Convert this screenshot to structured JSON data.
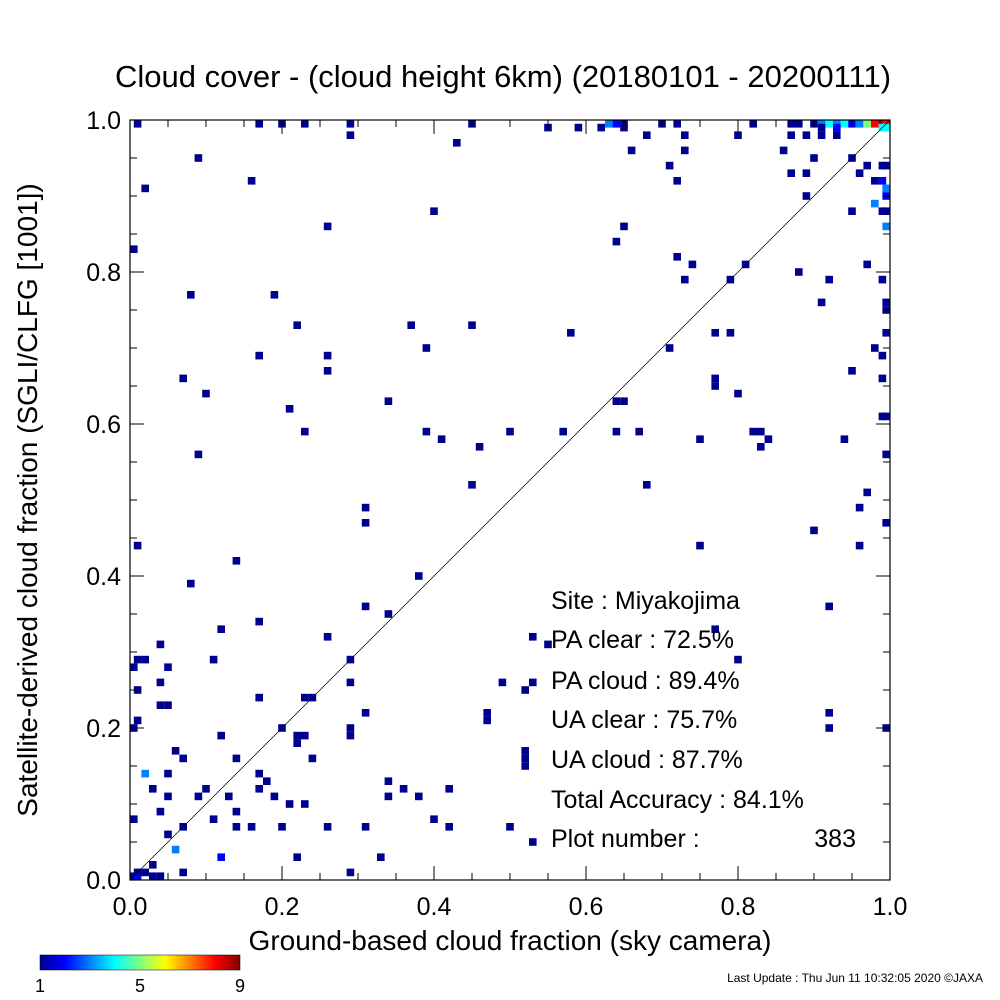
{
  "chart_data": {
    "type": "heatmap",
    "title": "Cloud cover - (cloud height 6km)  (20180101 - 20200111)",
    "xlabel": "Ground-based cloud fraction (sky camera)",
    "ylabel": "Satellite-derived cloud fraction (SGLI/CLFG [1001])",
    "xlim": [
      0.0,
      1.0
    ],
    "ylim": [
      0.0,
      1.0
    ],
    "xticks": [
      "0.0",
      "0.2",
      "0.4",
      "0.6",
      "0.8",
      "1.0"
    ],
    "yticks": [
      "0.0",
      "0.2",
      "0.4",
      "0.6",
      "0.8",
      "1.0"
    ],
    "grid": false,
    "diagonal_line": true,
    "cell_size": 0.01,
    "colorbar": {
      "min": 1,
      "max": 9,
      "ticks": [
        "1",
        "5",
        "9"
      ],
      "colors": [
        "#00008f",
        "#0000ff",
        "#0080ff",
        "#00ffff",
        "#80ff80",
        "#ffff00",
        "#ff8000",
        "#ff0000",
        "#800000"
      ]
    },
    "stats": {
      "site": "Site : Miyakojima",
      "pa_clear": "PA clear :  72.5%",
      "pa_cloud": "PA cloud :  89.4%",
      "ua_clear": "UA clear :  75.7%",
      "ua_cloud": "UA cloud :  87.7%",
      "total_accuracy": "Total Accuracy :  84.1%",
      "plot_number_label": "Plot number :",
      "plot_number_value": "383"
    },
    "points": [
      [
        0.0,
        0.0,
        1
      ],
      [
        0.01,
        0.0,
        2
      ],
      [
        0.03,
        0.0,
        1
      ],
      [
        0.04,
        0.0,
        1
      ],
      [
        0.01,
        0.01,
        1
      ],
      [
        0.02,
        0.01,
        1
      ],
      [
        0.07,
        0.01,
        1
      ],
      [
        0.29,
        0.01,
        1
      ],
      [
        0.03,
        0.02,
        1
      ],
      [
        0.06,
        0.04,
        3
      ],
      [
        0.12,
        0.03,
        2
      ],
      [
        0.22,
        0.03,
        1
      ],
      [
        0.33,
        0.03,
        1
      ],
      [
        0.05,
        0.06,
        1
      ],
      [
        0.07,
        0.07,
        1
      ],
      [
        0.11,
        0.08,
        1
      ],
      [
        0.14,
        0.07,
        1
      ],
      [
        0.16,
        0.07,
        1
      ],
      [
        0.2,
        0.07,
        1
      ],
      [
        0.26,
        0.07,
        1
      ],
      [
        0.31,
        0.07,
        1
      ],
      [
        0.4,
        0.08,
        1
      ],
      [
        0.42,
        0.07,
        1
      ],
      [
        0.5,
        0.07,
        1
      ],
      [
        0.53,
        0.05,
        1
      ],
      [
        0.0,
        0.08,
        1
      ],
      [
        0.04,
        0.09,
        1
      ],
      [
        0.09,
        0.11,
        1
      ],
      [
        0.14,
        0.09,
        1
      ],
      [
        0.05,
        0.11,
        1
      ],
      [
        0.17,
        0.12,
        1
      ],
      [
        0.19,
        0.11,
        1
      ],
      [
        0.21,
        0.1,
        1
      ],
      [
        0.23,
        0.1,
        1
      ],
      [
        0.34,
        0.11,
        1
      ],
      [
        0.36,
        0.12,
        1
      ],
      [
        0.38,
        0.11,
        1
      ],
      [
        0.42,
        0.12,
        1
      ],
      [
        0.02,
        0.14,
        3
      ],
      [
        0.1,
        0.12,
        1
      ],
      [
        0.13,
        0.11,
        1
      ],
      [
        0.18,
        0.13,
        1
      ],
      [
        0.34,
        0.13,
        1
      ],
      [
        0.03,
        0.12,
        1
      ],
      [
        0.17,
        0.14,
        1
      ],
      [
        0.06,
        0.17,
        1
      ],
      [
        0.07,
        0.16,
        1
      ],
      [
        0.14,
        0.16,
        1
      ],
      [
        0.24,
        0.16,
        1
      ],
      [
        0.52,
        0.15,
        1
      ],
      [
        0.52,
        0.16,
        1
      ],
      [
        0.52,
        0.17,
        1
      ],
      [
        0.05,
        0.14,
        1
      ],
      [
        0.12,
        0.19,
        1
      ],
      [
        0.22,
        0.19,
        1
      ],
      [
        0.23,
        0.19,
        1
      ],
      [
        0.22,
        0.18,
        1
      ],
      [
        0.29,
        0.19,
        1
      ],
      [
        0.29,
        0.2,
        1
      ],
      [
        0.0,
        0.2,
        1
      ],
      [
        0.01,
        0.21,
        1
      ],
      [
        0.2,
        0.2,
        1
      ],
      [
        0.31,
        0.22,
        1
      ],
      [
        0.47,
        0.22,
        1
      ],
      [
        0.47,
        0.21,
        1
      ],
      [
        0.92,
        0.22,
        1
      ],
      [
        0.92,
        0.2,
        1
      ],
      [
        1.0,
        0.2,
        1
      ],
      [
        0.04,
        0.23,
        1
      ],
      [
        0.05,
        0.23,
        1
      ],
      [
        0.17,
        0.24,
        1
      ],
      [
        0.23,
        0.24,
        1
      ],
      [
        0.24,
        0.24,
        1
      ],
      [
        0.29,
        0.26,
        1
      ],
      [
        0.01,
        0.25,
        1
      ],
      [
        0.04,
        0.26,
        1
      ],
      [
        0.49,
        0.26,
        1
      ],
      [
        0.52,
        0.25,
        1
      ],
      [
        0.53,
        0.26,
        1
      ],
      [
        0.0,
        0.28,
        1
      ],
      [
        0.01,
        0.29,
        1
      ],
      [
        0.02,
        0.29,
        1
      ],
      [
        0.05,
        0.28,
        1
      ],
      [
        0.11,
        0.29,
        1
      ],
      [
        0.29,
        0.29,
        1
      ],
      [
        0.8,
        0.29,
        1
      ],
      [
        0.04,
        0.31,
        1
      ],
      [
        0.12,
        0.33,
        1
      ],
      [
        0.17,
        0.34,
        1
      ],
      [
        0.26,
        0.32,
        1
      ],
      [
        0.53,
        0.32,
        1
      ],
      [
        0.55,
        0.31,
        1
      ],
      [
        0.77,
        0.33,
        1
      ],
      [
        0.92,
        0.36,
        1
      ],
      [
        0.34,
        0.35,
        1
      ],
      [
        0.31,
        0.36,
        1
      ],
      [
        0.08,
        0.39,
        1
      ],
      [
        0.38,
        0.4,
        1
      ],
      [
        0.14,
        0.42,
        1
      ],
      [
        0.01,
        0.44,
        1
      ],
      [
        0.75,
        0.44,
        1
      ],
      [
        0.96,
        0.44,
        1
      ],
      [
        0.9,
        0.46,
        1
      ],
      [
        0.31,
        0.47,
        1
      ],
      [
        0.31,
        0.49,
        1
      ],
      [
        0.96,
        0.49,
        1
      ],
      [
        0.97,
        0.51,
        1
      ],
      [
        0.45,
        0.52,
        1
      ],
      [
        0.68,
        0.52,
        1
      ],
      [
        1.0,
        0.47,
        1
      ],
      [
        0.09,
        0.56,
        1
      ],
      [
        0.46,
        0.57,
        1
      ],
      [
        0.41,
        0.58,
        1
      ],
      [
        0.39,
        0.59,
        1
      ],
      [
        0.23,
        0.59,
        1
      ],
      [
        0.5,
        0.59,
        1
      ],
      [
        0.57,
        0.59,
        1
      ],
      [
        0.64,
        0.59,
        1
      ],
      [
        0.67,
        0.59,
        1
      ],
      [
        0.75,
        0.58,
        1
      ],
      [
        0.82,
        0.59,
        1
      ],
      [
        0.83,
        0.59,
        1
      ],
      [
        0.84,
        0.58,
        1
      ],
      [
        0.83,
        0.57,
        1
      ],
      [
        0.94,
        0.58,
        1
      ],
      [
        1.0,
        0.56,
        1
      ],
      [
        0.21,
        0.62,
        1
      ],
      [
        0.34,
        0.63,
        1
      ],
      [
        0.64,
        0.63,
        1
      ],
      [
        0.65,
        0.63,
        1
      ],
      [
        0.8,
        0.64,
        1
      ],
      [
        0.1,
        0.64,
        1
      ],
      [
        0.07,
        0.66,
        1
      ],
      [
        0.77,
        0.65,
        1
      ],
      [
        0.77,
        0.66,
        1
      ],
      [
        0.99,
        0.61,
        1
      ],
      [
        1.0,
        0.61,
        1
      ],
      [
        0.17,
        0.69,
        1
      ],
      [
        0.26,
        0.69,
        1
      ],
      [
        0.26,
        0.67,
        1
      ],
      [
        0.39,
        0.7,
        1
      ],
      [
        0.71,
        0.7,
        1
      ],
      [
        0.95,
        0.67,
        1
      ],
      [
        0.99,
        0.66,
        1
      ],
      [
        0.22,
        0.73,
        1
      ],
      [
        0.37,
        0.73,
        1
      ],
      [
        0.45,
        0.73,
        1
      ],
      [
        0.58,
        0.72,
        1
      ],
      [
        0.77,
        0.72,
        1
      ],
      [
        0.79,
        0.72,
        1
      ],
      [
        0.98,
        0.7,
        1
      ],
      [
        0.99,
        0.69,
        1
      ],
      [
        1.0,
        0.72,
        1
      ],
      [
        0.08,
        0.77,
        1
      ],
      [
        0.19,
        0.77,
        1
      ],
      [
        0.91,
        0.76,
        1
      ],
      [
        0.79,
        0.79,
        1
      ],
      [
        0.88,
        0.8,
        1
      ],
      [
        0.92,
        0.79,
        1
      ],
      [
        0.73,
        0.79,
        1
      ],
      [
        0.72,
        0.82,
        1
      ],
      [
        0.74,
        0.81,
        1
      ],
      [
        0.81,
        0.81,
        1
      ],
      [
        0.97,
        0.81,
        1
      ],
      [
        0.99,
        0.79,
        1
      ],
      [
        1.0,
        0.76,
        1
      ],
      [
        1.0,
        0.75,
        1
      ],
      [
        0.0,
        0.83,
        1
      ],
      [
        0.64,
        0.84,
        1
      ],
      [
        0.26,
        0.86,
        1
      ],
      [
        0.65,
        0.86,
        1
      ],
      [
        1.0,
        0.86,
        3
      ],
      [
        0.4,
        0.88,
        1
      ],
      [
        0.95,
        0.88,
        1
      ],
      [
        0.02,
        0.91,
        1
      ],
      [
        0.16,
        0.92,
        1
      ],
      [
        0.89,
        0.9,
        1
      ],
      [
        0.87,
        0.93,
        1
      ],
      [
        0.89,
        0.93,
        1
      ],
      [
        0.96,
        0.93,
        1
      ],
      [
        0.98,
        0.92,
        1
      ],
      [
        0.99,
        0.92,
        2
      ],
      [
        1.0,
        0.91,
        3
      ],
      [
        1.0,
        0.9,
        2
      ],
      [
        0.98,
        0.89,
        3
      ],
      [
        0.99,
        0.88,
        1
      ],
      [
        1.0,
        0.88,
        1
      ],
      [
        0.72,
        0.92,
        1
      ],
      [
        0.71,
        0.94,
        1
      ],
      [
        0.9,
        0.95,
        1
      ],
      [
        0.95,
        0.95,
        1
      ],
      [
        0.97,
        0.94,
        1
      ],
      [
        0.99,
        0.94,
        1
      ],
      [
        1.0,
        0.94,
        1
      ],
      [
        0.09,
        0.95,
        1
      ],
      [
        0.43,
        0.97,
        1
      ],
      [
        0.66,
        0.96,
        1
      ],
      [
        0.73,
        0.96,
        1
      ],
      [
        0.86,
        0.96,
        1
      ],
      [
        0.29,
        0.98,
        1
      ],
      [
        0.65,
        0.99,
        1
      ],
      [
        0.68,
        0.98,
        1
      ],
      [
        0.73,
        0.98,
        1
      ],
      [
        0.8,
        0.98,
        1
      ],
      [
        0.87,
        0.98,
        1
      ],
      [
        0.89,
        0.98,
        1
      ],
      [
        0.91,
        0.98,
        1
      ],
      [
        0.93,
        0.98,
        1
      ],
      [
        0.62,
        0.99,
        1
      ],
      [
        0.59,
        0.99,
        1
      ],
      [
        0.55,
        0.99,
        1
      ],
      [
        0.01,
        1.0,
        1
      ],
      [
        0.17,
        1.0,
        1
      ],
      [
        0.2,
        1.0,
        1
      ],
      [
        0.23,
        1.0,
        1
      ],
      [
        0.29,
        1.0,
        1
      ],
      [
        0.45,
        1.0,
        1
      ],
      [
        0.63,
        1.0,
        3
      ],
      [
        0.64,
        1.0,
        2
      ],
      [
        0.65,
        1.0,
        1
      ],
      [
        0.7,
        1.0,
        1
      ],
      [
        0.72,
        1.0,
        1
      ],
      [
        0.82,
        1.0,
        1
      ],
      [
        0.87,
        1.0,
        1
      ],
      [
        0.88,
        1.0,
        1
      ],
      [
        0.9,
        1.0,
        1
      ],
      [
        0.91,
        1.0,
        3
      ],
      [
        0.92,
        1.0,
        4
      ],
      [
        0.93,
        1.0,
        3
      ],
      [
        0.94,
        1.0,
        4
      ],
      [
        0.95,
        1.0,
        2
      ],
      [
        0.96,
        1.0,
        3
      ],
      [
        0.97,
        1.0,
        5
      ],
      [
        0.98,
        1.0,
        8
      ],
      [
        0.99,
        1.0,
        9
      ],
      [
        1.0,
        1.0,
        8
      ],
      [
        0.99,
        0.99,
        4
      ],
      [
        1.0,
        0.99,
        4
      ],
      [
        0.91,
        0.99,
        1
      ],
      [
        0.93,
        0.99,
        2
      ]
    ]
  },
  "footer": {
    "last_update": "Last Update : Thu Jun 11 10:32:05 2020  ©JAXA"
  }
}
